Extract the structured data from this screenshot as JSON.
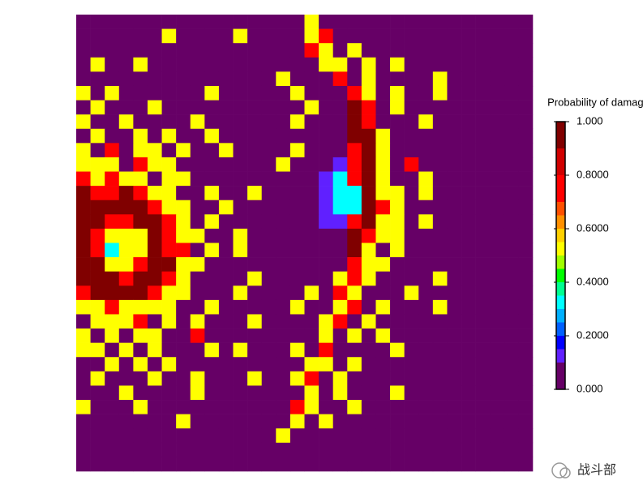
{
  "chart_data": {
    "type": "heatmap",
    "colorbar_title": "Probability of damage",
    "watermark": "战斗部",
    "colorscale": {
      "stops": [
        0,
        0.1,
        0.15,
        0.2,
        0.25,
        0.3,
        0.35,
        0.4,
        0.45,
        0.5,
        0.55,
        0.6,
        0.65,
        0.7,
        0.8,
        0.9
      ],
      "colors": [
        "#660066",
        "#6020ff",
        "#0000ff",
        "#0060ff",
        "#00b0ff",
        "#00ffff",
        "#00ff90",
        "#00ff00",
        "#a0ff00",
        "#ffff00",
        "#ffd000",
        "#ff9000",
        "#ff5000",
        "#ff0000",
        "#d00000",
        "#800000"
      ]
    },
    "clim": [
      0,
      1
    ],
    "cticks": [
      {
        "value": 0,
        "label": "0.000"
      },
      {
        "value": 0.2,
        "label": "0.2000"
      },
      {
        "value": 0.4,
        "label": "0.4000"
      },
      {
        "value": 0.6,
        "label": "0.6000"
      },
      {
        "value": 0.8,
        "label": "0.8000"
      },
      {
        "value": 1,
        "label": "1.000"
      }
    ],
    "values": [
      [
        0,
        0,
        0,
        0,
        0,
        0,
        0,
        0,
        0,
        0,
        0,
        0,
        0,
        0,
        0,
        0,
        0.5,
        0,
        0,
        0,
        0,
        0,
        0,
        0,
        0,
        0,
        0,
        0,
        0,
        0,
        0,
        0
      ],
      [
        0,
        0,
        0,
        0,
        0,
        0,
        0.5,
        0,
        0,
        0,
        0,
        0.5,
        0,
        0,
        0,
        0,
        0.5,
        0.75,
        0,
        0,
        0,
        0,
        0,
        0,
        0,
        0,
        0,
        0,
        0,
        0,
        0,
        0
      ],
      [
        0,
        0,
        0,
        0,
        0,
        0,
        0,
        0,
        0,
        0,
        0,
        0,
        0,
        0,
        0,
        0,
        0.75,
        0.5,
        0,
        0.5,
        0,
        0,
        0,
        0,
        0,
        0,
        0,
        0,
        0,
        0,
        0,
        0
      ],
      [
        0,
        0.5,
        0,
        0,
        0.5,
        0,
        0,
        0,
        0,
        0,
        0,
        0,
        0,
        0,
        0,
        0,
        0,
        0.5,
        0.5,
        0,
        0.5,
        0,
        0.5,
        0,
        0,
        0,
        0,
        0,
        0,
        0,
        0,
        0
      ],
      [
        0,
        0,
        0,
        0,
        0,
        0,
        0,
        0,
        0,
        0,
        0,
        0,
        0,
        0,
        0.5,
        0,
        0,
        0,
        0.75,
        0,
        0.5,
        0,
        0,
        0,
        0,
        0.5,
        0,
        0,
        0,
        0,
        0,
        0
      ],
      [
        0.5,
        0,
        0.5,
        0,
        0,
        0,
        0,
        0,
        0,
        0.5,
        0,
        0,
        0,
        0,
        0,
        0.5,
        0,
        0,
        0,
        0.75,
        0.5,
        0,
        0.5,
        0,
        0,
        0.5,
        0,
        0,
        0,
        0,
        0,
        0
      ],
      [
        0,
        0.5,
        0,
        0,
        0,
        0.5,
        0,
        0,
        0,
        0,
        0,
        0,
        0,
        0,
        0,
        0,
        0.5,
        0,
        0,
        1,
        0.75,
        0,
        0.5,
        0,
        0,
        0,
        0,
        0,
        0,
        0,
        0,
        0
      ],
      [
        0.5,
        0,
        0,
        0.5,
        0,
        0,
        0,
        0,
        0.5,
        0,
        0,
        0,
        0,
        0,
        0,
        0.5,
        0,
        0,
        0,
        1,
        0.75,
        0,
        0,
        0,
        0.5,
        0,
        0,
        0,
        0,
        0,
        0,
        0
      ],
      [
        0,
        0.5,
        0,
        0,
        0.5,
        0,
        0.5,
        0,
        0,
        0.5,
        0,
        0,
        0,
        0,
        0,
        0,
        0,
        0,
        0,
        1,
        1,
        0.5,
        0,
        0,
        0,
        0,
        0,
        0,
        0,
        0,
        0,
        0
      ],
      [
        0.5,
        0,
        0.75,
        0,
        0.5,
        0.5,
        0,
        0.5,
        0,
        0,
        0.5,
        0,
        0,
        0,
        0,
        0.5,
        0,
        0,
        0,
        0.75,
        1,
        0.5,
        0,
        0,
        0,
        0,
        0,
        0,
        0,
        0,
        0,
        0
      ],
      [
        0.5,
        0.5,
        0.5,
        0,
        0.75,
        0.5,
        0.5,
        0,
        0,
        0,
        0,
        0,
        0,
        0,
        0.5,
        0,
        0,
        0,
        0.12,
        0.75,
        1,
        0.5,
        0,
        0.75,
        0,
        0,
        0,
        0,
        0,
        0,
        0,
        0
      ],
      [
        0.75,
        0.5,
        0.75,
        0.5,
        0.5,
        0,
        0.5,
        0.5,
        0,
        0,
        0,
        0,
        0,
        0,
        0,
        0,
        0,
        0.12,
        0.3,
        0.75,
        1,
        0.5,
        0,
        0,
        0.5,
        0,
        0,
        0,
        0,
        0,
        0,
        0
      ],
      [
        1,
        0.75,
        0.75,
        1,
        0.75,
        0.5,
        0.5,
        0,
        0,
        0.5,
        0,
        0,
        0.5,
        0,
        0,
        0,
        0,
        0.12,
        0.3,
        0.3,
        1,
        0.5,
        0.5,
        0,
        0.5,
        0,
        0,
        0,
        0,
        0,
        0,
        0
      ],
      [
        1,
        1,
        1,
        1,
        1,
        0.75,
        0.5,
        0.5,
        0,
        0,
        0.5,
        0,
        0,
        0,
        0,
        0,
        0,
        0.12,
        0.3,
        0.3,
        1,
        0.75,
        0.5,
        0,
        0,
        0,
        0,
        0,
        0,
        0,
        0,
        0
      ],
      [
        1,
        1,
        0.75,
        0.75,
        1,
        1,
        0.75,
        0.5,
        0,
        0.5,
        0,
        0,
        0,
        0,
        0,
        0,
        0,
        0.12,
        0.12,
        0.75,
        1,
        0.5,
        0.5,
        0,
        0.5,
        0,
        0,
        0,
        0,
        0,
        0,
        0
      ],
      [
        1,
        0.75,
        0.5,
        0.5,
        0.5,
        1,
        0.75,
        0.5,
        0.5,
        0,
        0,
        0.5,
        0,
        0,
        0,
        0,
        0,
        0,
        0,
        1,
        0.75,
        0.5,
        0.5,
        0,
        0,
        0,
        0,
        0,
        0,
        0,
        0,
        0
      ],
      [
        1,
        0.75,
        0.3,
        0.5,
        0.5,
        1,
        0.75,
        0.75,
        0,
        0.5,
        0,
        0.5,
        0,
        0,
        0,
        0,
        0,
        0,
        0,
        1,
        0.5,
        0,
        0.5,
        0,
        0,
        0,
        0,
        0,
        0,
        0,
        0,
        0
      ],
      [
        1,
        1,
        0.5,
        0.5,
        0.75,
        1,
        1,
        0.5,
        0.5,
        0,
        0,
        0,
        0,
        0,
        0,
        0,
        0,
        0,
        0,
        0.75,
        0.5,
        0.5,
        0,
        0,
        0,
        0,
        0,
        0,
        0,
        0,
        0,
        0
      ],
      [
        1,
        1,
        1,
        0.75,
        1,
        1,
        0.75,
        0.5,
        0,
        0,
        0,
        0,
        0.5,
        0,
        0,
        0,
        0,
        0,
        0.5,
        0.75,
        0.5,
        0,
        0,
        0,
        0,
        0.5,
        0,
        0,
        0,
        0,
        0,
        0
      ],
      [
        0.75,
        1,
        1,
        1,
        1,
        0.75,
        0.5,
        0.5,
        0,
        0,
        0,
        0.5,
        0,
        0,
        0,
        0,
        0.5,
        0,
        0.75,
        0.5,
        0,
        0,
        0,
        0.5,
        0,
        0,
        0,
        0,
        0,
        0,
        0,
        0
      ],
      [
        0.5,
        0.5,
        0.75,
        0.5,
        0.5,
        0.5,
        0.5,
        0,
        0,
        0.5,
        0,
        0,
        0,
        0,
        0,
        0.5,
        0,
        0,
        0.5,
        0.75,
        0,
        0.5,
        0,
        0,
        0,
        0.5,
        0,
        0,
        0,
        0,
        0,
        0
      ],
      [
        0,
        0.5,
        0.5,
        0.5,
        0.75,
        0,
        0.5,
        0,
        0.5,
        0,
        0,
        0,
        0.5,
        0,
        0,
        0,
        0,
        0.5,
        0.75,
        0,
        0.5,
        0,
        0,
        0,
        0,
        0,
        0,
        0,
        0,
        0,
        0,
        0
      ],
      [
        0.5,
        0,
        0.5,
        0,
        0.5,
        0.5,
        0,
        0,
        0.75,
        0,
        0,
        0,
        0,
        0,
        0,
        0,
        0,
        0.5,
        0,
        0.5,
        0,
        0.5,
        0,
        0,
        0,
        0,
        0,
        0,
        0,
        0,
        0,
        0
      ],
      [
        0.5,
        0.5,
        0,
        0.5,
        0,
        0.5,
        0,
        0,
        0,
        0.5,
        0,
        0.5,
        0,
        0,
        0,
        0.5,
        0,
        0.75,
        0,
        0,
        0,
        0,
        0.5,
        0,
        0,
        0,
        0,
        0,
        0,
        0,
        0,
        0
      ],
      [
        0,
        0,
        0.5,
        0,
        0.5,
        0,
        0.5,
        0,
        0,
        0,
        0,
        0,
        0,
        0,
        0,
        0,
        0.5,
        0.5,
        0,
        0.5,
        0,
        0,
        0,
        0,
        0,
        0,
        0,
        0,
        0,
        0,
        0,
        0
      ],
      [
        0,
        0.5,
        0,
        0,
        0,
        0.5,
        0,
        0,
        0.5,
        0,
        0,
        0,
        0.5,
        0,
        0,
        0.5,
        0.75,
        0,
        0.5,
        0,
        0,
        0,
        0,
        0,
        0,
        0,
        0,
        0,
        0,
        0,
        0,
        0
      ],
      [
        0,
        0,
        0,
        0.5,
        0,
        0,
        0,
        0,
        0.5,
        0,
        0,
        0,
        0,
        0,
        0,
        0,
        0.5,
        0,
        0.5,
        0,
        0,
        0,
        0.5,
        0,
        0,
        0,
        0,
        0,
        0,
        0,
        0,
        0
      ],
      [
        0.5,
        0,
        0,
        0,
        0.5,
        0,
        0,
        0,
        0,
        0,
        0,
        0,
        0,
        0,
        0,
        0.75,
        0.5,
        0,
        0,
        0.5,
        0,
        0,
        0,
        0,
        0,
        0,
        0,
        0,
        0,
        0,
        0,
        0
      ],
      [
        0,
        0,
        0,
        0,
        0,
        0,
        0,
        0.5,
        0,
        0,
        0,
        0,
        0,
        0,
        0,
        0.5,
        0,
        0.5,
        0,
        0,
        0,
        0,
        0,
        0,
        0,
        0,
        0,
        0,
        0,
        0,
        0,
        0
      ],
      [
        0,
        0,
        0,
        0,
        0,
        0,
        0,
        0,
        0,
        0,
        0,
        0,
        0,
        0,
        0.5,
        0,
        0,
        0,
        0,
        0,
        0,
        0,
        0,
        0,
        0,
        0,
        0,
        0,
        0,
        0,
        0,
        0
      ],
      [
        0,
        0,
        0,
        0,
        0,
        0,
        0,
        0,
        0,
        0,
        0,
        0,
        0,
        0,
        0,
        0,
        0,
        0,
        0,
        0,
        0,
        0,
        0,
        0,
        0,
        0,
        0,
        0,
        0,
        0,
        0,
        0
      ],
      [
        0,
        0,
        0,
        0,
        0,
        0,
        0,
        0,
        0,
        0,
        0,
        0,
        0,
        0,
        0,
        0,
        0,
        0,
        0,
        0,
        0,
        0,
        0,
        0,
        0,
        0,
        0,
        0,
        0,
        0,
        0,
        0
      ]
    ]
  }
}
